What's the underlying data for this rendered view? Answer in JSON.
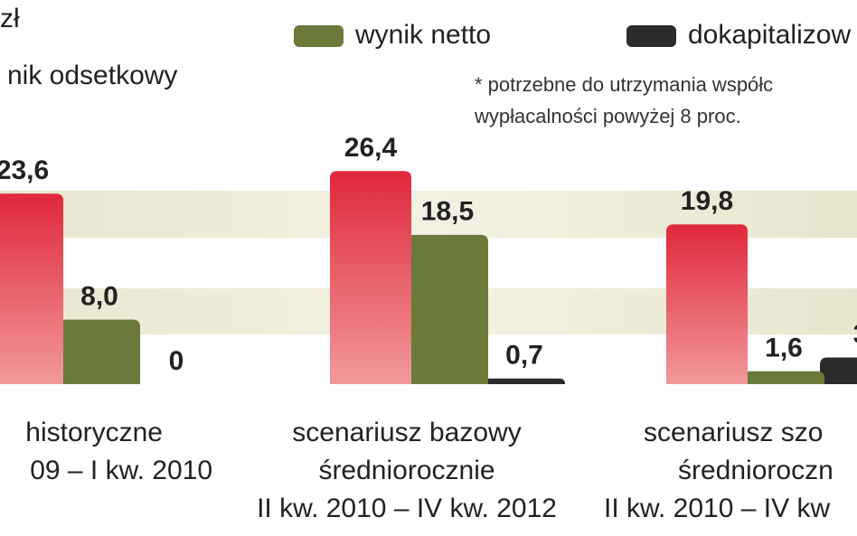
{
  "chart_data": {
    "type": "bar",
    "title": "zł",
    "note": [
      "* potrzebne do utrzymania współc",
      "wypłacalności powyżej 8 proc."
    ],
    "categories": [
      [
        "historyczne",
        "09 – I kw. 2010"
      ],
      [
        "scenariusz bazowy",
        "średniorocznie",
        "II kw. 2010 – IV kw. 2012"
      ],
      [
        "scenariusz szo",
        "średnioroczn",
        "II kw. 2010 – IV kw"
      ]
    ],
    "series": [
      {
        "name": "nik odsetkowy",
        "color": "#e0283c",
        "values": [
          23.6,
          26.4,
          19.8
        ],
        "value_labels": [
          "23,6",
          "26,4",
          "19,8"
        ]
      },
      {
        "name": "wynik netto",
        "color": "#6b7a3a",
        "values": [
          8.0,
          18.5,
          1.6
        ],
        "value_labels": [
          "8,0",
          "18,5",
          "1,6"
        ]
      },
      {
        "name": "dokapitalizow",
        "color": "#2b2b2b",
        "values": [
          0,
          0.7,
          3.3
        ],
        "value_labels": [
          "0",
          "0,7",
          "3"
        ]
      }
    ],
    "ylim": [
      0,
      28
    ]
  }
}
